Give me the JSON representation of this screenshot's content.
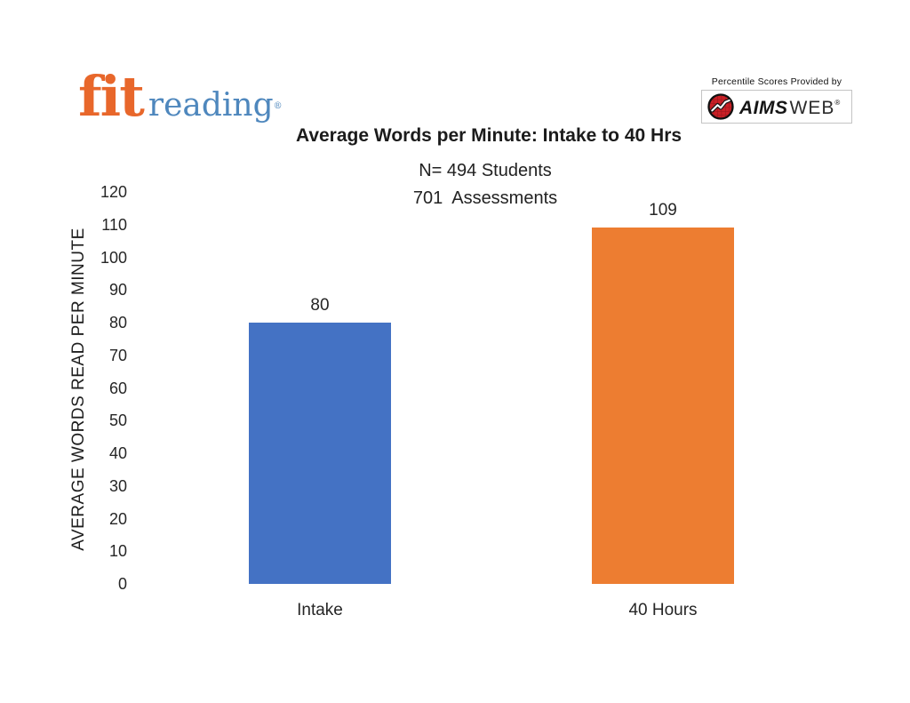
{
  "page": {
    "background": "#ffffff"
  },
  "logo": {
    "fit": "fit",
    "reading": "reading",
    "registered": "®",
    "fit_color": "#E8672B",
    "reading_color": "#4E87BD"
  },
  "provider": {
    "caption": "Percentile Scores Provided by",
    "brand_aims": "AIMS",
    "brand_web": "WEB",
    "registered": "®",
    "logo_red": "#CB2026",
    "logo_ring": "#111111"
  },
  "chart_data": {
    "type": "bar",
    "title": "Average Words per Minute: Intake to 40 Hrs",
    "subtitle_lines": [
      "N= 494 Students",
      "701  Assessments"
    ],
    "categories": [
      "Intake",
      "40 Hours"
    ],
    "values": [
      80,
      109
    ],
    "data_labels": [
      "80",
      "109"
    ],
    "bar_colors": [
      "#4472C4",
      "#ED7D31"
    ],
    "xlabel": "",
    "ylabel": "AVERAGE WORDS READ PER MINUTE",
    "ylim": [
      0,
      120
    ],
    "yticks": [
      0,
      10,
      20,
      30,
      40,
      50,
      60,
      70,
      80,
      90,
      100,
      110,
      120
    ],
    "grid": false,
    "legend": "none"
  }
}
